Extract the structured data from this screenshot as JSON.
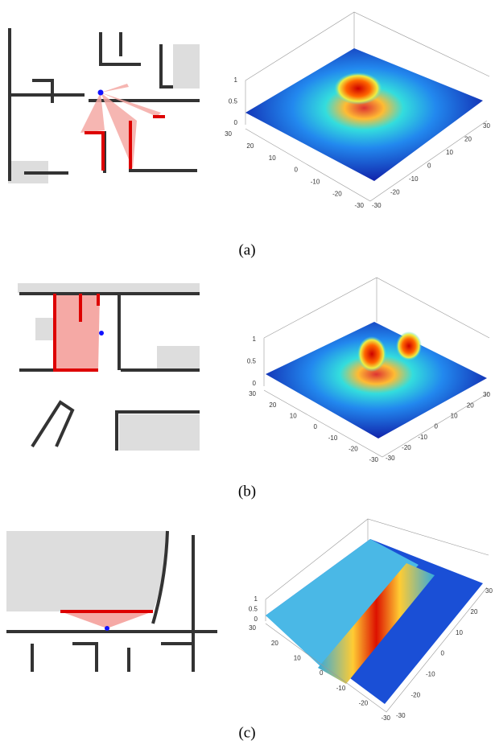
{
  "panels": [
    {
      "label": "(a)",
      "surface": {
        "zticks": [
          1,
          0.5,
          0
        ],
        "left_axis_ticks": [
          30,
          20,
          10,
          0,
          -10,
          -20,
          -30
        ],
        "right_axis_ticks": [
          -30,
          -20,
          -10,
          0,
          10,
          20,
          30
        ]
      }
    },
    {
      "label": "(b)",
      "surface": {
        "zticks": [
          1,
          0.5,
          0
        ],
        "left_axis_ticks": [
          30,
          20,
          10,
          0,
          -10,
          -20,
          -30
        ],
        "right_axis_ticks": [
          -30,
          -20,
          -10,
          0,
          10,
          20,
          30
        ]
      }
    },
    {
      "label": "(c)",
      "surface": {
        "zticks": [
          1,
          0.5,
          0
        ],
        "left_axis_ticks": [
          30,
          20,
          10,
          0,
          -10,
          -20,
          -30
        ],
        "right_axis_ticks": [
          -30,
          -20,
          -10,
          0,
          10,
          20,
          30
        ]
      }
    }
  ]
}
